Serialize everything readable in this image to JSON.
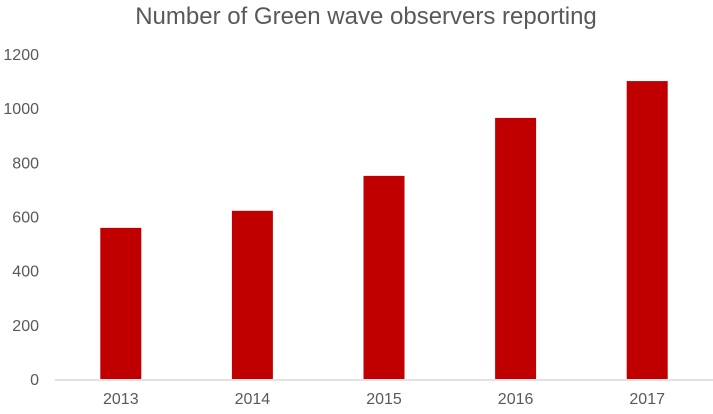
{
  "chart_data": {
    "type": "bar",
    "title": "Number of Green wave observers reporting",
    "xlabel": "",
    "ylabel": "",
    "categories": [
      "2013",
      "2014",
      "2015",
      "2016",
      "2017"
    ],
    "values": [
      558,
      621,
      750,
      964,
      1100
    ],
    "ylim": [
      0,
      1200
    ],
    "yticks": [
      "0",
      "200",
      "400",
      "600",
      "800",
      "1000",
      "1200"
    ],
    "grid": false,
    "legend": "none",
    "bar_color": "#c00000"
  }
}
